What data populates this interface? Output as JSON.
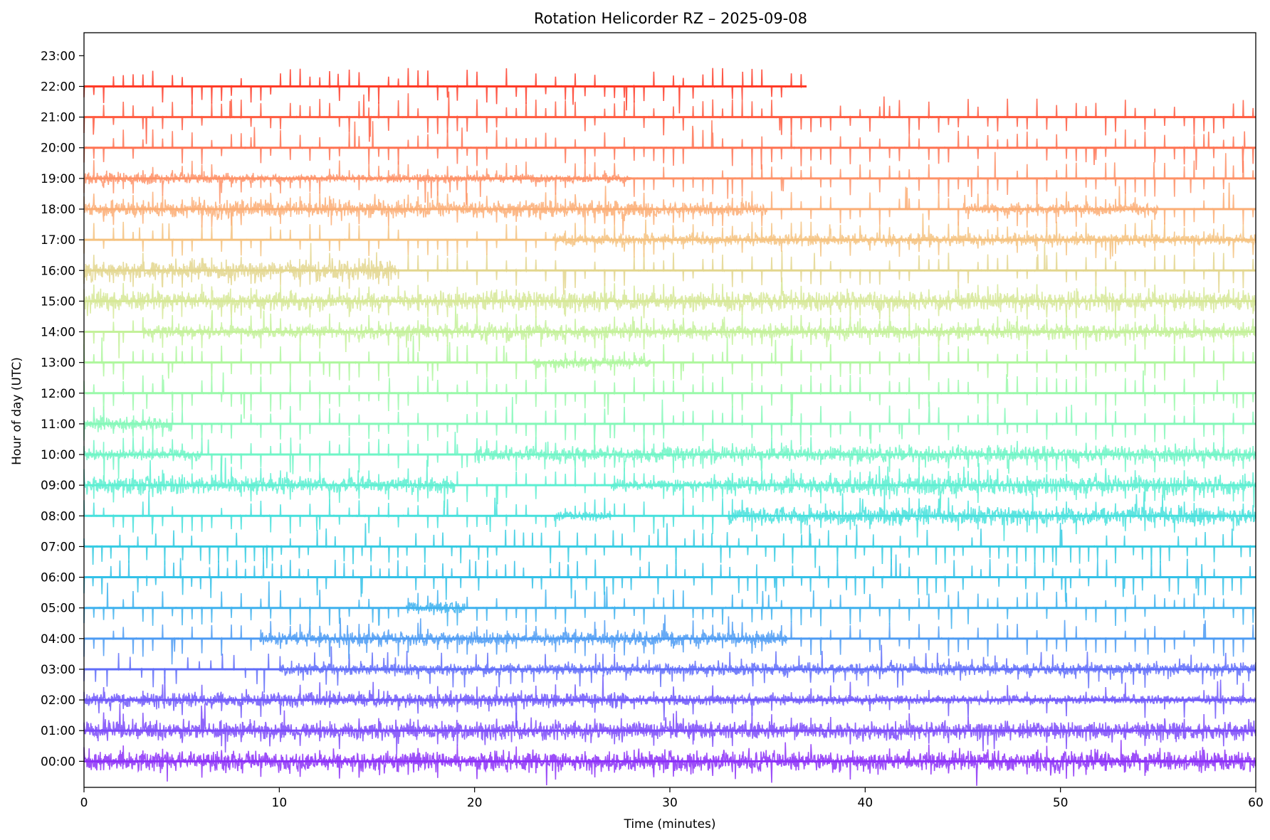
{
  "chart_data": {
    "type": "line",
    "title": "Rotation Helicorder RZ – 2025-09-08",
    "xlabel": "Time (minutes)",
    "ylabel": "Hour of day (UTC)",
    "xlim": [
      0,
      60
    ],
    "ylim": [
      -0.85,
      23.75
    ],
    "grid": false,
    "legend": "none",
    "colormap": "rainbow",
    "x_ticks": [
      0,
      10,
      20,
      30,
      40,
      50,
      60
    ],
    "x_tick_labels": [
      "0",
      "10",
      "20",
      "30",
      "40",
      "50",
      "60"
    ],
    "y_ticks": [
      0,
      1,
      2,
      3,
      4,
      5,
      6,
      7,
      8,
      9,
      10,
      11,
      12,
      13,
      14,
      15,
      16,
      17,
      18,
      19,
      20,
      21,
      22,
      23
    ],
    "y_tick_labels": [
      "00:00",
      "01:00",
      "02:00",
      "03:00",
      "04:00",
      "05:00",
      "06:00",
      "07:00",
      "08:00",
      "09:00",
      "10:00",
      "11:00",
      "12:00",
      "13:00",
      "14:00",
      "15:00",
      "16:00",
      "17:00",
      "18:00",
      "19:00",
      "20:00",
      "21:00",
      "22:00",
      "23:00"
    ],
    "series": [
      {
        "hour": 0,
        "color": "#8b2ff7",
        "end_minute": 60,
        "spike_interval_min": 1.0,
        "noisy_segments": [
          [
            0,
            60,
            0.6
          ]
        ]
      },
      {
        "hour": 1,
        "color": "#7b4af9",
        "end_minute": 60,
        "spike_interval_min": 1.0,
        "noisy_segments": [
          [
            0,
            60,
            0.55
          ]
        ]
      },
      {
        "hour": 2,
        "color": "#6e57fa",
        "end_minute": 60,
        "spike_interval_min": 1.0,
        "noisy_segments": [
          [
            0,
            28,
            0.45
          ],
          [
            28,
            42,
            0.3
          ],
          [
            42,
            60,
            0.25
          ]
        ]
      },
      {
        "hour": 3,
        "color": "#5f6cf9",
        "end_minute": 60,
        "spike_interval_min": 0.6,
        "noisy_segments": [
          [
            10,
            60,
            0.35
          ]
        ]
      },
      {
        "hour": 4,
        "color": "#4c9bf3",
        "end_minute": 60,
        "spike_interval_min": 0.5,
        "noisy_segments": [
          [
            9,
            36,
            0.4
          ],
          [
            26,
            36,
            0.45
          ]
        ]
      },
      {
        "hour": 5,
        "color": "#3eb1ee",
        "end_minute": 60,
        "spike_interval_min": 0.5,
        "noisy_segments": [
          [
            16.5,
            19.5,
            0.35
          ]
        ]
      },
      {
        "hour": 6,
        "color": "#33c1e8",
        "end_minute": 60,
        "spike_interval_min": 0.45,
        "noisy_segments": []
      },
      {
        "hour": 7,
        "color": "#34cbe2",
        "end_minute": 60,
        "spike_interval_min": 0.45,
        "noisy_segments": []
      },
      {
        "hour": 8,
        "color": "#46e0dc",
        "end_minute": 60,
        "spike_interval_min": 0.5,
        "noisy_segments": [
          [
            24,
            27,
            0.3
          ],
          [
            33,
            60,
            0.5
          ]
        ]
      },
      {
        "hour": 9,
        "color": "#5cefd1",
        "end_minute": 60,
        "spike_interval_min": 0.5,
        "noisy_segments": [
          [
            0,
            7,
            0.5
          ],
          [
            7,
            19,
            0.45
          ],
          [
            27,
            32,
            0.3
          ],
          [
            32,
            60,
            0.55
          ]
        ]
      },
      {
        "hour": 10,
        "color": "#6ff5c6",
        "end_minute": 60,
        "spike_interval_min": 0.5,
        "noisy_segments": [
          [
            0,
            6,
            0.35
          ],
          [
            20,
            60,
            0.45
          ]
        ]
      },
      {
        "hour": 11,
        "color": "#84f8b8",
        "end_minute": 60,
        "spike_interval_min": 0.5,
        "noisy_segments": [
          [
            0,
            4.5,
            0.45
          ]
        ]
      },
      {
        "hour": 12,
        "color": "#9af9aa",
        "end_minute": 60,
        "spike_interval_min": 0.5,
        "noisy_segments": []
      },
      {
        "hour": 13,
        "color": "#aef79d",
        "end_minute": 60,
        "spike_interval_min": 0.5,
        "noisy_segments": [
          [
            23,
            29,
            0.35
          ]
        ]
      },
      {
        "hour": 14,
        "color": "#c4f19a",
        "end_minute": 60,
        "spike_interval_min": 0.5,
        "noisy_segments": [
          [
            3,
            14,
            0.35
          ],
          [
            14,
            60,
            0.45
          ]
        ]
      },
      {
        "hour": 15,
        "color": "#d6e896",
        "end_minute": 60,
        "spike_interval_min": 0.5,
        "noisy_segments": [
          [
            0,
            17,
            0.55
          ],
          [
            17,
            60,
            0.55
          ]
        ]
      },
      {
        "hour": 16,
        "color": "#e3d68e",
        "end_minute": 60,
        "spike_interval_min": 0.5,
        "noisy_segments": [
          [
            0,
            16,
            0.55
          ]
        ]
      },
      {
        "hour": 17,
        "color": "#f5c27f",
        "end_minute": 60,
        "spike_interval_min": 0.5,
        "noisy_segments": [
          [
            24,
            60,
            0.35
          ]
        ]
      },
      {
        "hour": 18,
        "color": "#fbad74",
        "end_minute": 60,
        "spike_interval_min": 0.5,
        "noisy_segments": [
          [
            0,
            30,
            0.5
          ],
          [
            30,
            35,
            0.4
          ],
          [
            45,
            55,
            0.35
          ]
        ]
      },
      {
        "hour": 19,
        "color": "#fe9166",
        "end_minute": 60,
        "spike_interval_min": 0.5,
        "noisy_segments": [
          [
            0,
            8,
            0.35
          ],
          [
            8,
            28,
            0.25
          ]
        ]
      },
      {
        "hour": 20,
        "color": "#ff7352",
        "end_minute": 60,
        "spike_interval_min": 0.5,
        "noisy_segments": []
      },
      {
        "hour": 21,
        "color": "#ff5a3f",
        "end_minute": 60,
        "spike_interval_min": 0.5,
        "noisy_segments": []
      },
      {
        "hour": 22,
        "color": "#ff3a26",
        "end_minute": 37,
        "spike_interval_min": 0.5,
        "noisy_segments": []
      }
    ]
  }
}
